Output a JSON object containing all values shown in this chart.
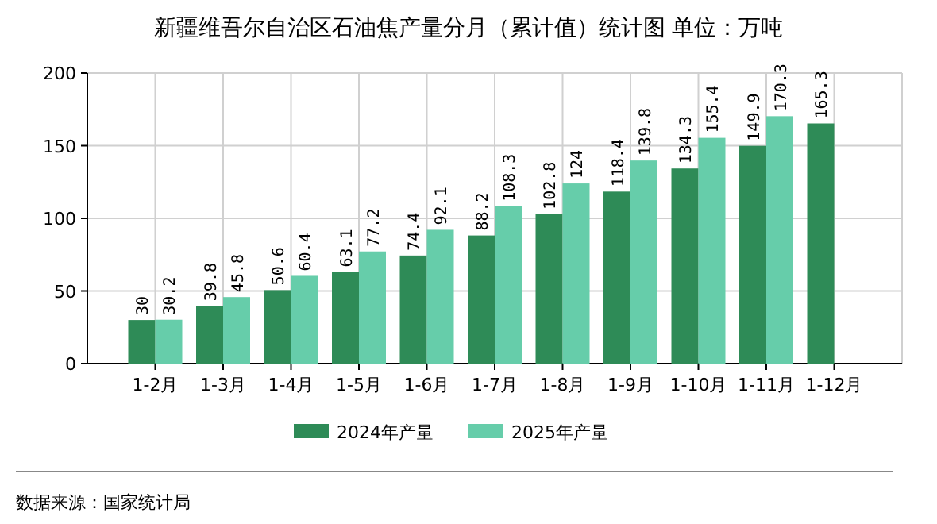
{
  "chart_data": {
    "type": "bar",
    "title": "新疆维吾尔自治区石油焦产量分月（累计值）统计图 单位：万吨",
    "categories": [
      "1-2月",
      "1-3月",
      "1-4月",
      "1-5月",
      "1-6月",
      "1-7月",
      "1-8月",
      "1-9月",
      "1-10月",
      "1-11月",
      "1-12月"
    ],
    "series": [
      {
        "name": "2024年产量",
        "color": "#2e8b57",
        "values": [
          30,
          39.8,
          50.6,
          63.1,
          74.4,
          88.2,
          102.8,
          118.4,
          134.3,
          149.9,
          165.3
        ]
      },
      {
        "name": "2025年产量",
        "color": "#66cdaa",
        "values": [
          30.2,
          45.8,
          60.4,
          77.2,
          92.1,
          108.3,
          124,
          139.8,
          155.4,
          170.3,
          null
        ]
      }
    ],
    "ylim": [
      0,
      200
    ],
    "yticks": [
      0,
      50,
      100,
      150,
      200
    ],
    "grid": true,
    "legend": "bottom",
    "data_labels": true,
    "annotations": [
      "数据来源：国家统计局"
    ]
  }
}
